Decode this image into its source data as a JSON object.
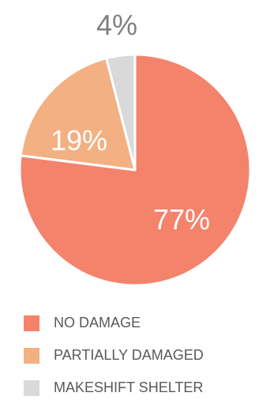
{
  "chart_data": {
    "type": "pie",
    "categories": [
      "NO DAMAGE",
      "PARTIALLY DAMAGED",
      "MAKESHIFT SHELTER"
    ],
    "values": [
      77,
      19,
      4
    ],
    "value_labels": [
      "77%",
      "19%",
      "4%"
    ],
    "colors": [
      "#f4836c",
      "#f3b083",
      "#d9d9d9"
    ],
    "label_colors": [
      "#ffffff",
      "#ffffff",
      "#7f7f7f"
    ],
    "legend_position": "bottom",
    "start": "top",
    "direction": "clockwise"
  }
}
